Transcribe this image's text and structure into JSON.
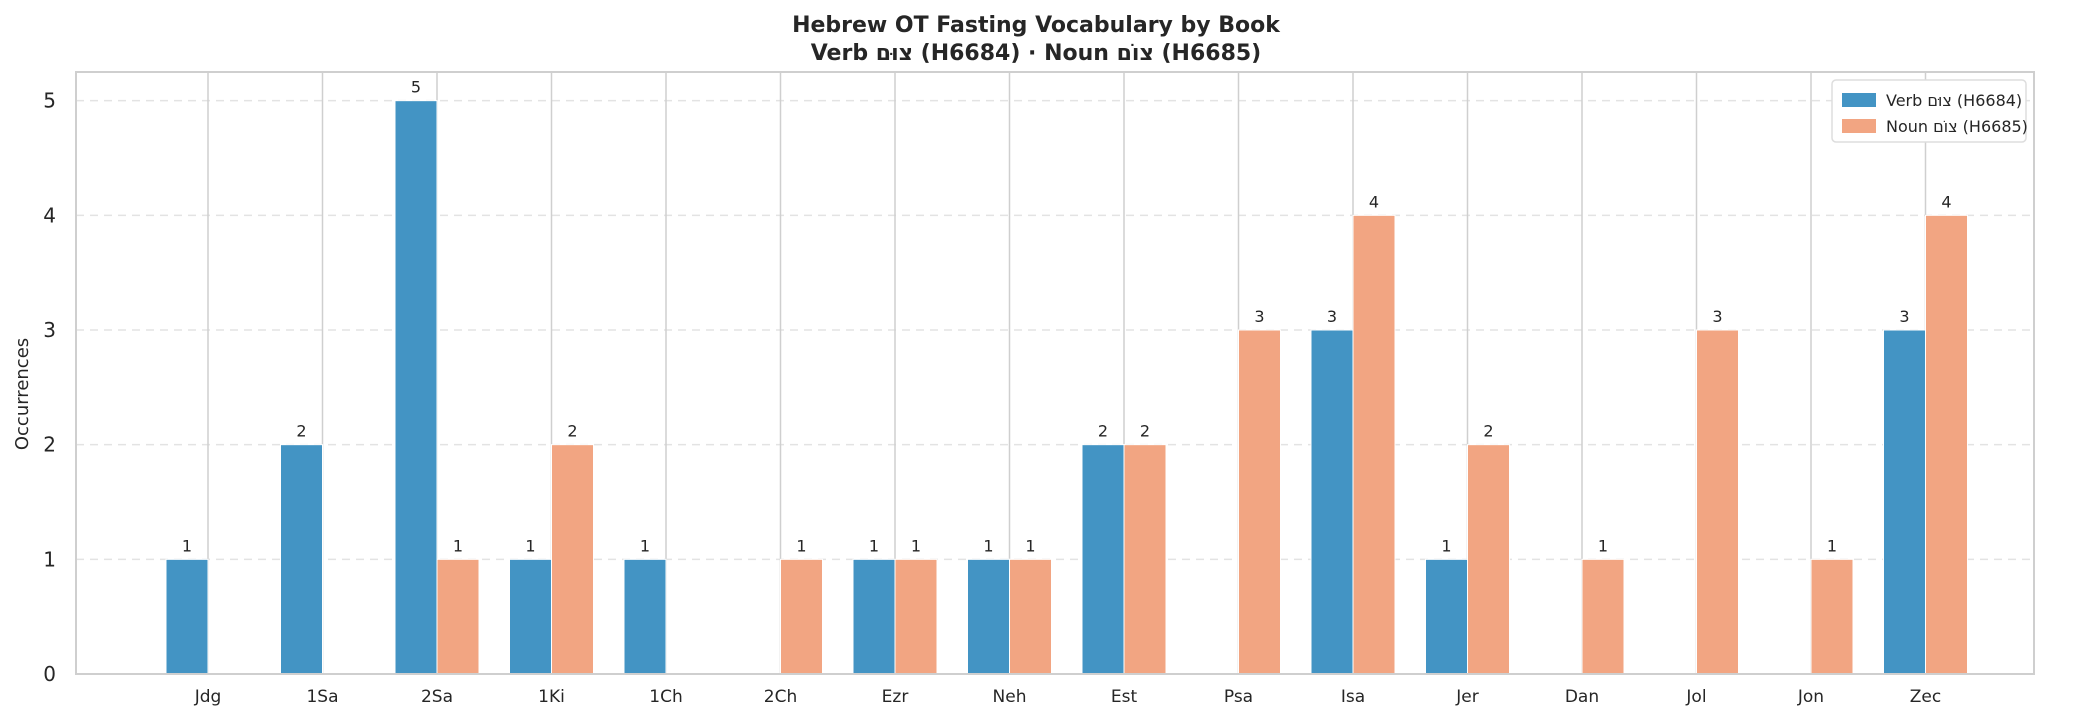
{
  "chart_data": {
    "type": "bar",
    "title": "Hebrew OT Fasting Vocabulary by Book",
    "subtitle": "Verb צוּם (H6684) · Noun צוֹם (H6685)",
    "xlabel": "",
    "ylabel": "Occurrences",
    "ylim": [
      0,
      5.25
    ],
    "yticks": [
      "0",
      "1",
      "2",
      "3",
      "4",
      "5"
    ],
    "grid": "y, dashed",
    "legend_position": "top-right",
    "categories": [
      "Jdg",
      "1Sa",
      "2Sa",
      "1Ki",
      "1Ch",
      "2Ch",
      "Ezr",
      "Neh",
      "Est",
      "Psa",
      "Isa",
      "Jer",
      "Dan",
      "Jol",
      "Jon",
      "Zec"
    ],
    "series": [
      {
        "name": "Verb צוּם (H6684)",
        "color": "#4394c4",
        "values": [
          1,
          2,
          5,
          1,
          1,
          0,
          1,
          1,
          2,
          0,
          3,
          1,
          0,
          0,
          0,
          3
        ]
      },
      {
        "name": "Noun צוֹם (H6685)",
        "color": "#f2a582",
        "values": [
          0,
          0,
          1,
          2,
          0,
          1,
          1,
          1,
          2,
          3,
          4,
          2,
          1,
          3,
          1,
          4
        ]
      }
    ]
  }
}
